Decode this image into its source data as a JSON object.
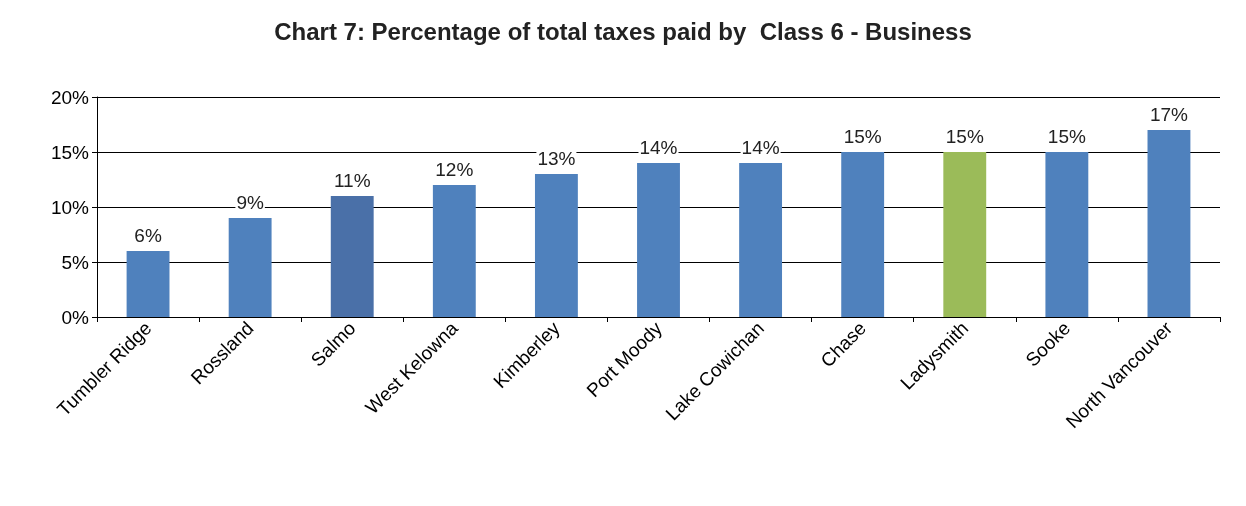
{
  "chart_data": {
    "type": "bar",
    "title": "Chart 7: Percentage of total taxes paid by  Class 6 - Business",
    "categories": [
      "Tumbler Ridge",
      "Rossland",
      "Salmo",
      "West Kelowna",
      "Kimberley",
      "Port Moody",
      "Lake Cowichan",
      "Chase",
      "Ladysmith",
      "Sooke",
      "North Vancouver"
    ],
    "values": [
      6,
      9,
      11,
      12,
      13,
      14,
      14,
      15,
      15,
      15,
      17
    ],
    "value_labels": [
      "6%",
      "9%",
      "11%",
      "12%",
      "13%",
      "14%",
      "14%",
      "15%",
      "15%",
      "15%",
      "17%"
    ],
    "colors": [
      "#4f81bd",
      "#4f81bd",
      "#4a70a8",
      "#4f81bd",
      "#4f81bd",
      "#4f81bd",
      "#4f81bd",
      "#4f81bd",
      "#9bbb59",
      "#4f81bd",
      "#4f81bd"
    ],
    "ylim": [
      0,
      20
    ],
    "yticks": [
      {
        "value": 0,
        "label": "0%"
      },
      {
        "value": 5,
        "label": "5%"
      },
      {
        "value": 10,
        "label": "10%"
      },
      {
        "value": 15,
        "label": "15%"
      },
      {
        "value": 20,
        "label": "20%"
      }
    ],
    "grid": "y"
  }
}
